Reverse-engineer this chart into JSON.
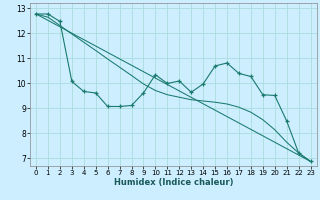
{
  "xlabel": "Humidex (Indice chaleur)",
  "bg_color": "#cceeff",
  "grid_color": "#aadddd",
  "line_color": "#1a7a6e",
  "xlim": [
    -0.5,
    23.5
  ],
  "ylim": [
    6.7,
    13.2
  ],
  "yticks": [
    7,
    8,
    9,
    10,
    11,
    12,
    13
  ],
  "xticks": [
    0,
    1,
    2,
    3,
    4,
    5,
    6,
    7,
    8,
    9,
    10,
    11,
    12,
    13,
    14,
    15,
    16,
    17,
    18,
    19,
    20,
    21,
    22,
    23
  ],
  "line1_x": [
    0,
    1,
    2,
    3,
    4,
    5,
    6,
    7,
    8,
    9,
    10,
    11,
    12,
    13,
    14,
    15,
    16,
    17,
    18,
    19,
    20,
    21,
    22,
    23
  ],
  "line1_y": [
    12.78,
    12.78,
    12.48,
    10.08,
    9.68,
    9.62,
    9.08,
    9.08,
    9.12,
    9.62,
    10.35,
    10.0,
    10.1,
    9.65,
    9.98,
    10.7,
    10.82,
    10.4,
    10.28,
    9.55,
    9.52,
    8.5,
    7.22,
    6.88
  ],
  "line2_x": [
    0,
    23
  ],
  "line2_y": [
    12.78,
    6.88
  ],
  "line3_x": [
    0,
    1,
    2,
    3,
    4,
    5,
    6,
    7,
    8,
    9,
    10,
    11,
    12,
    13,
    14,
    15,
    16,
    17,
    18,
    19,
    20,
    21,
    22,
    23
  ],
  "line3_y": [
    12.78,
    12.65,
    12.32,
    11.98,
    11.65,
    11.32,
    10.98,
    10.65,
    10.32,
    9.98,
    9.72,
    9.55,
    9.45,
    9.35,
    9.3,
    9.25,
    9.18,
    9.05,
    8.85,
    8.55,
    8.15,
    7.65,
    7.22,
    6.88
  ]
}
